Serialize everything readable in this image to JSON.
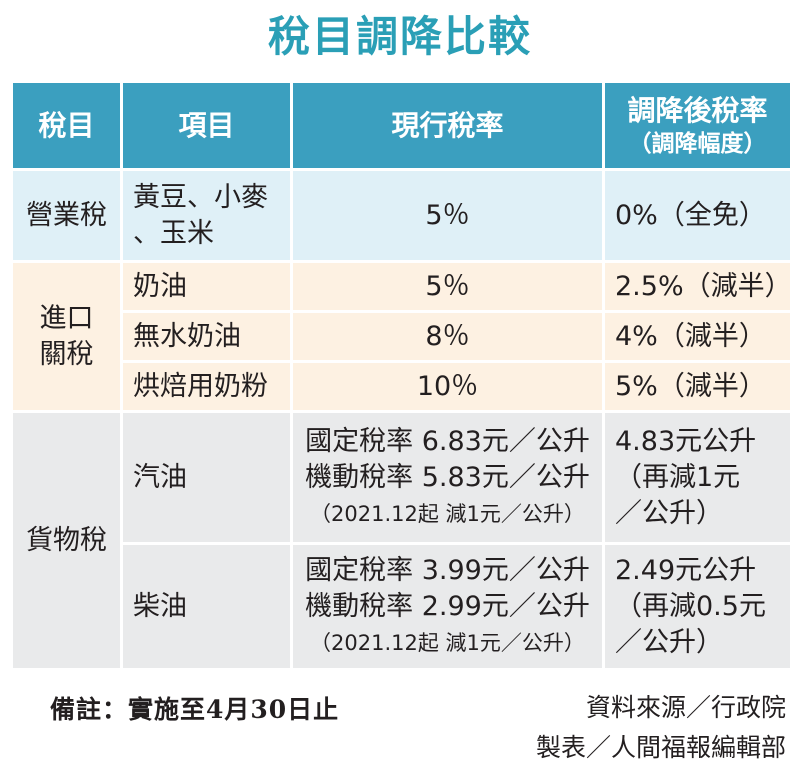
{
  "title": "稅目調降比較",
  "headers": {
    "tax_item": "稅目",
    "item": "項目",
    "current_rate": "現行稅率",
    "new_rate": "調降後稅率",
    "new_rate_sub": "（調降幅度）"
  },
  "groups": {
    "business": {
      "name": "營業稅",
      "rows": [
        {
          "item_line1": "黃豆、小麥",
          "item_line2": "、玉米",
          "current": "5％",
          "new": "0%（全免）"
        }
      ]
    },
    "import": {
      "name_line1": "進口",
      "name_line2": "關稅",
      "rows": [
        {
          "item": "奶油",
          "current": "5％",
          "new": "2.5%（減半）"
        },
        {
          "item": "無水奶油",
          "current": "8％",
          "new": "4%（減半）"
        },
        {
          "item": "烘焙用奶粉",
          "current": "10％",
          "new": "5%（減半）"
        }
      ]
    },
    "goods": {
      "name": "貨物稅",
      "rows": [
        {
          "item": "汽油",
          "current_line1": "國定稅率 6.83元／公升",
          "current_line2": "機動稅率 5.83元／公升",
          "current_line3": "（2021.12起 減1元／公升）",
          "new_line1": "4.83元公升",
          "new_line2": "（再減1元",
          "new_line3": "／公升）"
        },
        {
          "item": "柴油",
          "current_line1": "國定稅率 3.99元／公升",
          "current_line2": "機動稅率 2.99元／公升",
          "current_line3": "（2021.12起 減1元／公升）",
          "new_line1": "2.49元公升",
          "new_line2": "（再減0.5元",
          "new_line3": "／公升）"
        }
      ]
    }
  },
  "footer": {
    "note": "備註：實施至4月30日止",
    "source": "資料來源／行政院",
    "maker": "製表／人間福報編輯部"
  },
  "colors": {
    "title": "#2a9fb6",
    "header_bg": "#3b9fbf",
    "business_bg": "#dff0f7",
    "import_bg": "#fdf1e2",
    "goods_bg": "#e9eaeb"
  }
}
